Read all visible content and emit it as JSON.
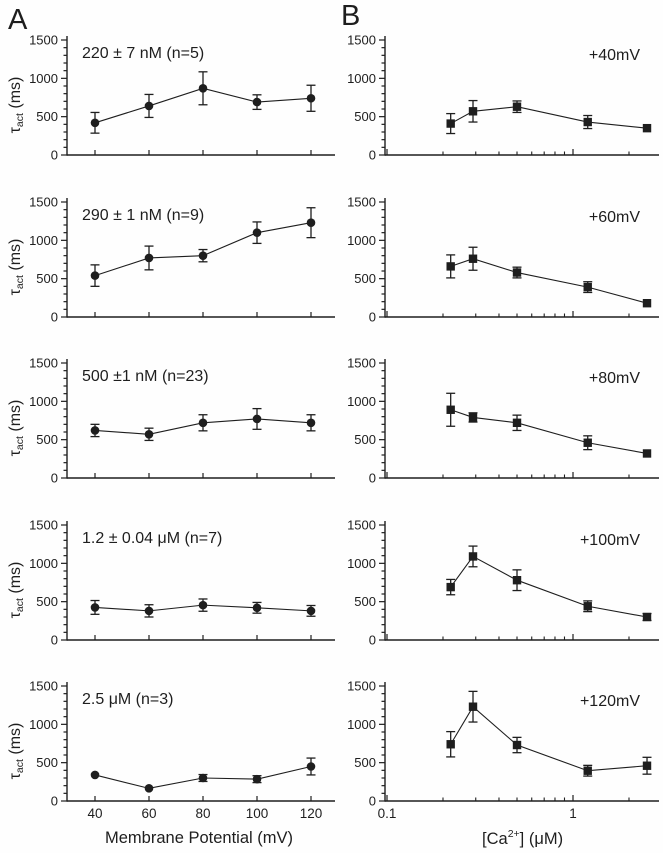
{
  "figure": {
    "panel_letters": {
      "a": "A",
      "b": "B"
    },
    "colors": {
      "ink": "#1e1e1e",
      "background": "#fefefe"
    },
    "y_axis": {
      "label_tau": "τ",
      "label_sub": "act",
      "label_units": " (ms)",
      "tick_labels": [
        "0",
        "500",
        "1000",
        "1500"
      ],
      "tick_values": [
        0,
        500,
        1000,
        1500
      ],
      "minor_step": 100,
      "range": [
        0,
        1500
      ],
      "grid": false
    },
    "a_x_axis": {
      "title": "Membrane Potential (mV)",
      "tick_labels": [
        "40",
        "60",
        "80",
        "100",
        "120"
      ],
      "tick_values": [
        40,
        60,
        80,
        100,
        120
      ]
    },
    "b_x_axis": {
      "title_pre": "[Ca",
      "title_sup": "2+",
      "title_bracket": "]",
      "title_units": "  (μM)",
      "tick_labels": [
        "0.1",
        "1"
      ],
      "tick_values": [
        0.1,
        1
      ],
      "minor_ticks": [
        0.2,
        0.3,
        0.4,
        0.5,
        0.6,
        0.7,
        0.8,
        0.9,
        2
      ],
      "scale": "log",
      "range": [
        0.1,
        3.2
      ]
    }
  },
  "chart_data": [
    {
      "id": "A1",
      "column": "A",
      "row": 0,
      "type": "line",
      "marker": "circle",
      "annotation": "220 ± 7 nM (n=5)",
      "x": [
        40,
        60,
        80,
        100,
        120
      ],
      "y": [
        420,
        640,
        870,
        690,
        740
      ],
      "yerr": [
        135,
        150,
        215,
        95,
        170
      ],
      "xlabel": "Membrane Potential (mV)",
      "ylabel": "τ_act (ms)",
      "ylim": [
        0,
        1500
      ]
    },
    {
      "id": "A2",
      "column": "A",
      "row": 1,
      "type": "line",
      "marker": "circle",
      "annotation": "290 ± 1 nM (n=9)",
      "x": [
        40,
        60,
        80,
        100,
        120
      ],
      "y": [
        540,
        770,
        800,
        1100,
        1230
      ],
      "yerr": [
        140,
        155,
        80,
        140,
        195
      ],
      "xlabel": "Membrane Potential (mV)",
      "ylabel": "τ_act (ms)",
      "ylim": [
        0,
        1500
      ]
    },
    {
      "id": "A3",
      "column": "A",
      "row": 2,
      "type": "line",
      "marker": "circle",
      "annotation": "500 ±1 nM (n=23)",
      "x": [
        40,
        60,
        80,
        100,
        120
      ],
      "y": [
        620,
        570,
        720,
        770,
        720
      ],
      "yerr": [
        80,
        80,
        105,
        135,
        105
      ],
      "xlabel": "Membrane Potential (mV)",
      "ylabel": "τ_act (ms)",
      "ylim": [
        0,
        1500
      ]
    },
    {
      "id": "A4",
      "column": "A",
      "row": 3,
      "type": "line",
      "marker": "circle",
      "annotation": "1.2 ± 0.04 μM (n=7)",
      "x": [
        40,
        60,
        80,
        100,
        120
      ],
      "y": [
        425,
        380,
        455,
        420,
        380
      ],
      "yerr": [
        90,
        80,
        80,
        70,
        70
      ],
      "xlabel": "Membrane Potential (mV)",
      "ylabel": "τ_act (ms)",
      "ylim": [
        0,
        1500
      ]
    },
    {
      "id": "A5",
      "column": "A",
      "row": 4,
      "type": "line",
      "marker": "circle",
      "annotation": "2.5 μM (n=3)",
      "x": [
        40,
        60,
        80,
        100,
        120
      ],
      "y": [
        340,
        165,
        300,
        285,
        450
      ],
      "yerr": [
        0,
        0,
        45,
        45,
        110
      ],
      "xlabel": "Membrane Potential (mV)",
      "ylabel": "τ_act (ms)",
      "ylim": [
        0,
        1500
      ]
    },
    {
      "id": "B1",
      "column": "B",
      "row": 0,
      "type": "line",
      "marker": "square",
      "annotation": "+40mV",
      "x": [
        0.22,
        0.29,
        0.5,
        1.2,
        2.5
      ],
      "y": [
        410,
        570,
        630,
        430,
        350
      ],
      "yerr": [
        130,
        140,
        75,
        85,
        0
      ],
      "xlabel": "[Ca2+] (μM)",
      "ylabel": "τ_act (ms)",
      "ylim": [
        0,
        1500
      ],
      "xscale": "log"
    },
    {
      "id": "B2",
      "column": "B",
      "row": 1,
      "type": "line",
      "marker": "square",
      "annotation": "+60mV",
      "x": [
        0.22,
        0.29,
        0.5,
        1.2,
        2.5
      ],
      "y": [
        660,
        760,
        580,
        390,
        180
      ],
      "yerr": [
        150,
        150,
        70,
        70,
        0
      ],
      "xlabel": "[Ca2+] (μM)",
      "ylabel": "τ_act (ms)",
      "ylim": [
        0,
        1500
      ],
      "xscale": "log"
    },
    {
      "id": "B3",
      "column": "B",
      "row": 2,
      "type": "line",
      "marker": "square",
      "annotation": "+80mV",
      "x": [
        0.22,
        0.29,
        0.5,
        1.2,
        2.5
      ],
      "y": [
        890,
        790,
        720,
        460,
        320
      ],
      "yerr": [
        215,
        60,
        100,
        90,
        0
      ],
      "xlabel": "[Ca2+] (μM)",
      "ylabel": "τ_act (ms)",
      "ylim": [
        0,
        1500
      ],
      "xscale": "log"
    },
    {
      "id": "B4",
      "column": "B",
      "row": 3,
      "type": "line",
      "marker": "square",
      "annotation": "+100mV",
      "x": [
        0.22,
        0.29,
        0.5,
        1.2,
        2.5
      ],
      "y": [
        690,
        1090,
        780,
        440,
        300
      ],
      "yerr": [
        100,
        135,
        135,
        70,
        45
      ],
      "xlabel": "[Ca2+] (μM)",
      "ylabel": "τ_act (ms)",
      "ylim": [
        0,
        1500
      ],
      "xscale": "log"
    },
    {
      "id": "B5",
      "column": "B",
      "row": 4,
      "type": "line",
      "marker": "square",
      "annotation": "+120mV",
      "x": [
        0.22,
        0.29,
        0.5,
        1.2,
        2.5
      ],
      "y": [
        740,
        1230,
        730,
        395,
        460
      ],
      "yerr": [
        165,
        200,
        100,
        70,
        110
      ],
      "xlabel": "[Ca2+] (μM)",
      "ylabel": "τ_act (ms)",
      "ylim": [
        0,
        1500
      ],
      "xscale": "log"
    }
  ]
}
